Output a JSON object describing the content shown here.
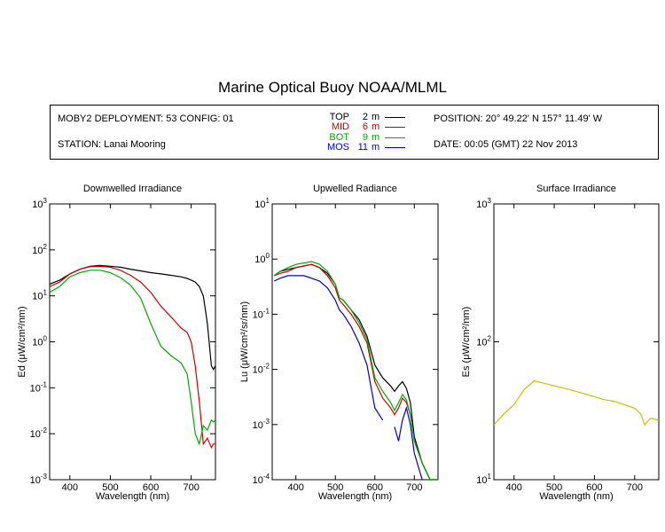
{
  "page": {
    "title": "Marine Optical Buoy NOAA/MLML",
    "deployment": "MOBY2 DEPLOYMENT: 53 CONFIG: 01",
    "station": "STATION: Lanai Mooring",
    "position": "POSITION: 20° 49.22' N   157° 11.49' W",
    "date": "DATE: 00:05 (GMT) 22 Nov 2013",
    "legend": [
      {
        "name": "TOP",
        "depth": "2",
        "unit": "m",
        "color": "#000000"
      },
      {
        "name": "MID",
        "depth": "6",
        "unit": "m",
        "color": "#cc0000"
      },
      {
        "name": "BOT",
        "depth": "9",
        "unit": "m",
        "color": "#00aa00"
      },
      {
        "name": "MOS",
        "depth": "11",
        "unit": "m",
        "color": "#0000cc"
      }
    ]
  },
  "chart_data": [
    {
      "type": "line",
      "title": "Downwelled Irradiance",
      "xlabel": "Wavelength (nm)",
      "ylabel": "Ed  (μW/cm²/nm)",
      "xlim": [
        350,
        760
      ],
      "ylim": [
        0.001,
        1000
      ],
      "yscale": "log",
      "xticks": [
        400,
        500,
        600,
        700
      ],
      "yticks": [
        "10-3",
        "10-2",
        "10-1",
        "10⁰",
        "10¹",
        "10²",
        "10³"
      ],
      "x": [
        350,
        375,
        400,
        425,
        450,
        475,
        500,
        525,
        550,
        575,
        600,
        625,
        650,
        675,
        690,
        700,
        710,
        720,
        730,
        740,
        750,
        755,
        760
      ],
      "series": [
        {
          "name": "TOP",
          "color": "#000000",
          "values": [
            18,
            22,
            30,
            38,
            44,
            46,
            44,
            42,
            38,
            35,
            32,
            30,
            28,
            26,
            24,
            22,
            20,
            16,
            10,
            2.5,
            0.3,
            0.25,
            0.3
          ]
        },
        {
          "name": "MID",
          "color": "#cc0000",
          "values": [
            16,
            20,
            30,
            38,
            43,
            44,
            42,
            36,
            28,
            20,
            12,
            6,
            3.5,
            2.0,
            1.6,
            1.0,
            0.3,
            0.05,
            0.006,
            0.008,
            0.005,
            0.006,
            0.006
          ]
        },
        {
          "name": "BOT",
          "color": "#00aa00",
          "values": [
            12,
            16,
            26,
            32,
            36,
            36,
            32,
            25,
            17,
            9,
            2.5,
            0.8,
            0.5,
            0.35,
            0.2,
            0.05,
            0.01,
            0.006,
            0.015,
            0.012,
            0.02,
            0.018,
            0.02
          ]
        }
      ]
    },
    {
      "type": "line",
      "title": "Upwelled Radiance",
      "xlabel": "Wavelength (nm)",
      "ylabel": "Lu  (μW/cm²/sr/nm)",
      "xlim": [
        340,
        760
      ],
      "ylim": [
        0.0001,
        10
      ],
      "yscale": "log",
      "xticks": [
        400,
        500,
        600,
        700
      ],
      "yticks": [
        "10-4",
        "10-3",
        "10-2",
        "10-1",
        "10⁰",
        "10¹"
      ],
      "x": [
        345,
        360,
        380,
        400,
        420,
        440,
        460,
        480,
        500,
        510,
        520,
        540,
        560,
        580,
        600,
        620,
        640,
        650,
        660,
        670,
        680,
        690,
        700,
        720,
        740,
        760
      ],
      "series": [
        {
          "name": "TOP",
          "color": "#000000",
          "values": [
            0.5,
            0.6,
            0.65,
            0.7,
            0.75,
            0.8,
            0.7,
            0.55,
            0.35,
            0.2,
            0.18,
            0.12,
            0.08,
            0.04,
            0.012,
            0.007,
            0.005,
            0.004,
            0.005,
            0.006,
            0.0045,
            0.0025,
            0.0006,
            0.0002,
            0.0001,
            0.0001
          ]
        },
        {
          "name": "MID",
          "color": "#cc0000",
          "values": [
            0.5,
            0.55,
            0.6,
            0.7,
            0.75,
            0.8,
            0.7,
            0.5,
            0.3,
            0.18,
            0.15,
            0.1,
            0.06,
            0.03,
            0.006,
            0.003,
            0.002,
            0.0015,
            0.002,
            0.003,
            0.0025,
            0.0015,
            0.0005,
            0.0002,
            0.0001,
            0.0001
          ]
        },
        {
          "name": "BOT",
          "color": "#00aa00",
          "values": [
            0.5,
            0.6,
            0.7,
            0.8,
            0.85,
            0.9,
            0.8,
            0.6,
            0.35,
            0.2,
            0.18,
            0.12,
            0.07,
            0.035,
            0.007,
            0.004,
            0.0025,
            0.0018,
            0.0025,
            0.0035,
            0.0028,
            0.0015,
            0.0005,
            0.0002,
            0.0001,
            0.0001
          ]
        },
        {
          "name": "MOS",
          "color": "#0000cc",
          "values": [
            0.4,
            0.45,
            0.5,
            0.5,
            0.5,
            0.45,
            0.4,
            0.3,
            0.18,
            0.12,
            0.1,
            0.06,
            0.03,
            0.012,
            0.002,
            0.0012,
            null,
            0.0009,
            0.0005,
            0.0012,
            0.002,
            0.001,
            0.0003,
            0.0001,
            null,
            null
          ]
        }
      ]
    },
    {
      "type": "line",
      "title": "Surface Irradiance",
      "xlabel": "Wavelength (nm)",
      "ylabel": "Es  (μW/cm²/nm)",
      "xlim": [
        350,
        760
      ],
      "ylim": [
        10,
        1000
      ],
      "yscale": "log",
      "xticks": [
        400,
        500,
        600,
        700
      ],
      "yticks": [
        "10¹",
        "10²",
        "10³"
      ],
      "x": [
        350,
        375,
        400,
        425,
        450,
        475,
        500,
        525,
        550,
        575,
        600,
        625,
        650,
        675,
        700,
        715,
        725,
        740,
        760
      ],
      "series": [
        {
          "name": "Es",
          "color": "#c8c000",
          "values": [
            25,
            30,
            35,
            45,
            52,
            50,
            48,
            46,
            44,
            42,
            40,
            38,
            37,
            35,
            33,
            30,
            25,
            28,
            27
          ]
        }
      ]
    }
  ]
}
